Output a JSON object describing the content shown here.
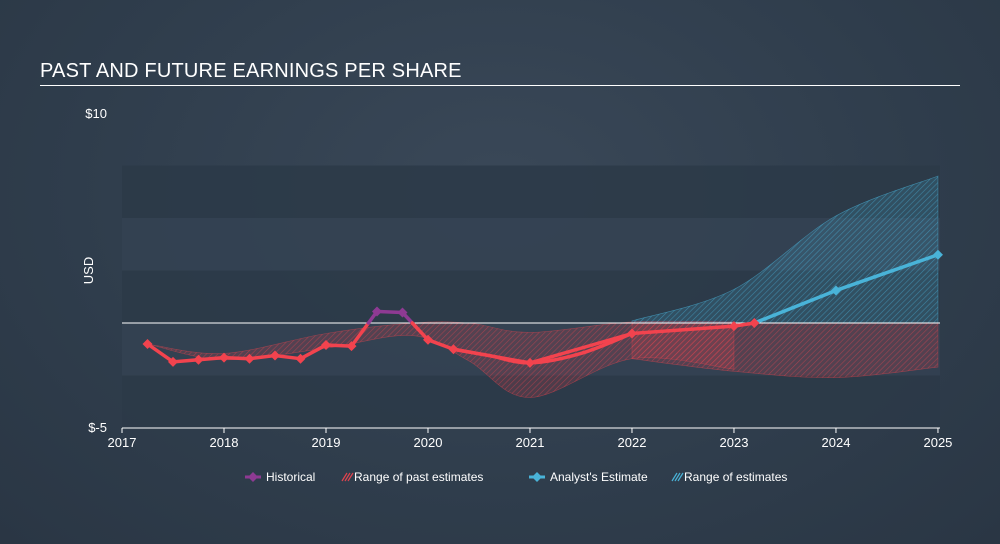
{
  "chart_data": {
    "type": "line",
    "title": "PAST AND FUTURE EARNINGS PER SHARE",
    "ylabel": "USD",
    "xlabel": "",
    "ylim": [
      -5,
      10
    ],
    "xlim": [
      2017,
      2025.02
    ],
    "x_ticks": [
      "2017",
      "2018",
      "2019",
      "2020",
      "2021",
      "2022",
      "2023",
      "2024",
      "2025"
    ],
    "y_ticks": [
      "$10",
      "$-5"
    ],
    "series": [
      {
        "name": "Historical",
        "color": "#8e3a93",
        "points": [
          [
            2017.25,
            -1.0
          ],
          [
            2017.5,
            -1.85
          ],
          [
            2017.75,
            -1.75
          ],
          [
            2018.0,
            -1.65
          ],
          [
            2018.25,
            -1.7
          ],
          [
            2018.5,
            -1.55
          ],
          [
            2018.75,
            -1.7
          ],
          [
            2019.0,
            -1.05
          ],
          [
            2019.25,
            -1.1
          ],
          [
            2019.5,
            0.55
          ],
          [
            2019.75,
            0.5
          ],
          [
            2020.0,
            -0.8
          ],
          [
            2020.25,
            -1.25
          ],
          [
            2021.0,
            -1.9
          ],
          [
            2022.0,
            -0.5
          ],
          [
            2023.0,
            -0.15
          ]
        ]
      },
      {
        "name": "Analyst's Estimate",
        "color": "#49b3d8",
        "points": [
          [
            2023.0,
            -0.15
          ],
          [
            2023.2,
            0.0
          ],
          [
            2024.0,
            1.55
          ],
          [
            2025.0,
            3.25
          ]
        ]
      }
    ],
    "past_estimate_range": {
      "name": "Range of past estimates",
      "color": "#e2434e",
      "upper": [
        [
          2017.25,
          -1.0
        ],
        [
          2018.0,
          -1.45
        ],
        [
          2019.0,
          -0.5
        ],
        [
          2019.85,
          0.0
        ],
        [
          2020.4,
          0.0
        ],
        [
          2021.0,
          -0.45
        ],
        [
          2022.0,
          0.05
        ],
        [
          2023.0,
          0.05
        ]
      ],
      "lower": [
        [
          2017.25,
          -1.0
        ],
        [
          2018.0,
          -1.75
        ],
        [
          2019.0,
          -1.2
        ],
        [
          2019.85,
          -0.6
        ],
        [
          2020.4,
          -1.8
        ],
        [
          2021.0,
          -3.55
        ],
        [
          2022.0,
          -1.7
        ],
        [
          2023.0,
          -2.2
        ]
      ]
    },
    "future_estimate_range": {
      "name": "Range of estimates",
      "color": "#49b3d8",
      "upper": [
        [
          2022.0,
          0.1
        ],
        [
          2023.0,
          1.6
        ],
        [
          2024.0,
          5.1
        ],
        [
          2025.0,
          7.0
        ]
      ],
      "lower": [
        [
          2022.0,
          0.0
        ],
        [
          2023.0,
          0.0
        ],
        [
          2025.0,
          0.0
        ]
      ],
      "negative_lower": [
        [
          2022.0,
          -1.7
        ],
        [
          2023.0,
          -2.3
        ],
        [
          2024.0,
          -2.6
        ],
        [
          2025.0,
          -2.1
        ]
      ]
    },
    "legend": [
      {
        "label": "Historical",
        "kind": "line",
        "color": "#8e3a93"
      },
      {
        "label": "Range of past estimates",
        "kind": "hatch",
        "color": "#e2434e"
      },
      {
        "label": "Analyst's Estimate",
        "kind": "line",
        "color": "#49b3d8"
      },
      {
        "label": "Range of estimates",
        "kind": "hatch",
        "color": "#49b3d8"
      }
    ],
    "legend_position": "bottom-center",
    "colors": {
      "negative_line": "#f2434e",
      "zero_line": "#ffffff",
      "band_dark": "#2c3948",
      "band_light": "#344252"
    }
  }
}
